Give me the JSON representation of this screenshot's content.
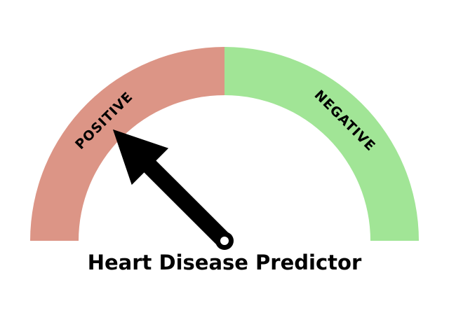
{
  "title": "Heart Disease Predictor",
  "chart_data": {
    "type": "gauge",
    "title": "Heart Disease Predictor",
    "range": [
      0,
      180
    ],
    "segments": [
      {
        "label": "POSITIVE",
        "range": [
          0,
          90
        ],
        "color": "#dc9586"
      },
      {
        "label": "NEGATIVE",
        "range": [
          90,
          180
        ],
        "color": "#a1e596"
      }
    ],
    "needle_value": 45,
    "needle_color": "#000000"
  }
}
